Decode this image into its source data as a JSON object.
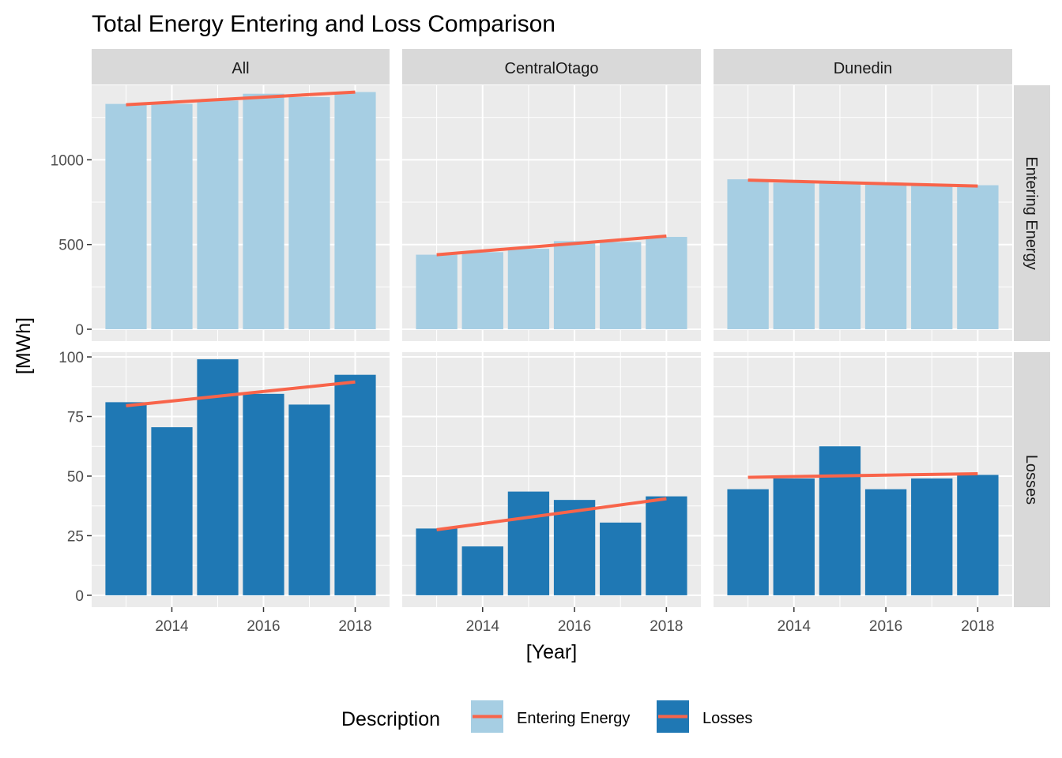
{
  "chart_data": {
    "type": "bar",
    "title": "Total Energy Entering and Loss Comparison",
    "xlabel": "[Year]",
    "ylabel": "[MWh]",
    "x": [
      2013,
      2014,
      2015,
      2016,
      2017,
      2018
    ],
    "x_ticks": [
      "2014",
      "2016",
      "2018"
    ],
    "columns": [
      "All",
      "CentralOtago",
      "Dunedin"
    ],
    "rows": [
      "Entering Energy",
      "Losses"
    ],
    "row_y_ticks": [
      {
        "ticks": [
          0,
          500,
          1000
        ],
        "labels": [
          "0",
          "500",
          "1000"
        ],
        "ylim": [
          -70,
          1440
        ]
      },
      {
        "ticks": [
          0,
          25,
          50,
          75,
          100
        ],
        "labels": [
          "0",
          "25",
          "50",
          "75",
          "100"
        ],
        "ylim": [
          -5,
          102
        ]
      }
    ],
    "panels": [
      {
        "column": "All",
        "row": "Entering Energy",
        "values": [
          1330,
          1330,
          1350,
          1390,
          1370,
          1400
        ],
        "trend": [
          1325,
          1400
        ]
      },
      {
        "column": "CentralOtago",
        "row": "Entering Energy",
        "values": [
          440,
          455,
          475,
          520,
          515,
          545
        ],
        "trend": [
          440,
          550
        ]
      },
      {
        "column": "Dunedin",
        "row": "Entering Energy",
        "values": [
          885,
          865,
          860,
          860,
          855,
          850
        ],
        "trend": [
          880,
          845
        ]
      },
      {
        "column": "All",
        "row": "Losses",
        "values": [
          81,
          70.5,
          99,
          84.5,
          80,
          92.5
        ],
        "trend": [
          79.5,
          89.5
        ]
      },
      {
        "column": "CentralOtago",
        "row": "Losses",
        "values": [
          28,
          20.5,
          43.5,
          40,
          30.5,
          41.5
        ],
        "trend": [
          27.5,
          40.5
        ]
      },
      {
        "column": "Dunedin",
        "row": "Losses",
        "values": [
          44.5,
          49,
          62.5,
          44.5,
          49,
          50.5
        ],
        "trend": [
          49.5,
          51
        ]
      }
    ],
    "legend": {
      "title": "Description",
      "placement": "bottom",
      "entries": [
        {
          "label": "Entering Energy",
          "color": "#a6cee3"
        },
        {
          "label": "Losses",
          "color": "#1f78b4"
        }
      ],
      "line_color": "#f8644a"
    },
    "colors": {
      "panel_bg": "#ebebeb",
      "strip_bg": "#d9d9d9",
      "grid": "#ffffff",
      "trend": "#f8644a"
    },
    "grid": true
  }
}
